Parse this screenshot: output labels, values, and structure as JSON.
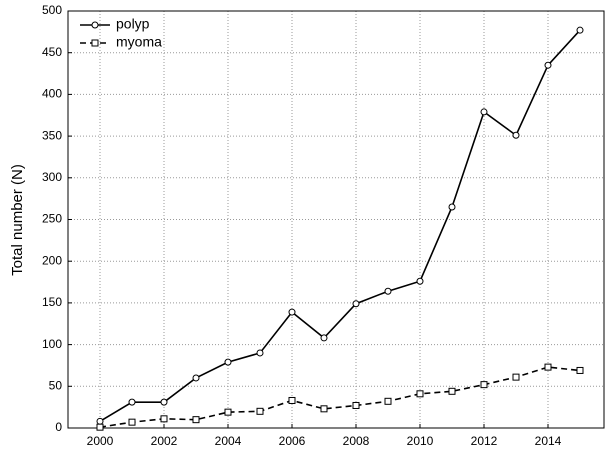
{
  "chart_data": {
    "type": "line",
    "y_label": "Total number (N)",
    "x": [
      2000,
      2001,
      2002,
      2003,
      2004,
      2005,
      2006,
      2007,
      2008,
      2009,
      2010,
      2011,
      2012,
      2013,
      2014,
      2015
    ],
    "series": [
      {
        "name": "polyp",
        "color": "#000000",
        "marker": "circle",
        "dash": "solid",
        "values": [
          8,
          31,
          31,
          60,
          79,
          90,
          139,
          108,
          149,
          164,
          176,
          265,
          379,
          351,
          435,
          477
        ]
      },
      {
        "name": "myoma",
        "color": "#000000",
        "marker": "square",
        "dash": "dashed",
        "values": [
          1,
          7,
          11,
          10,
          19,
          20,
          33,
          23,
          27,
          32,
          41,
          44,
          52,
          61,
          73,
          69
        ]
      }
    ],
    "xlim": [
      1999,
      2015.75
    ],
    "xticks": [
      2000,
      2002,
      2004,
      2006,
      2008,
      2010,
      2012,
      2014
    ],
    "ylim": [
      0,
      500
    ],
    "yticks": [
      0,
      50,
      100,
      150,
      200,
      250,
      300,
      350,
      400,
      450,
      500
    ],
    "grid": true,
    "legend": "upper-left"
  }
}
